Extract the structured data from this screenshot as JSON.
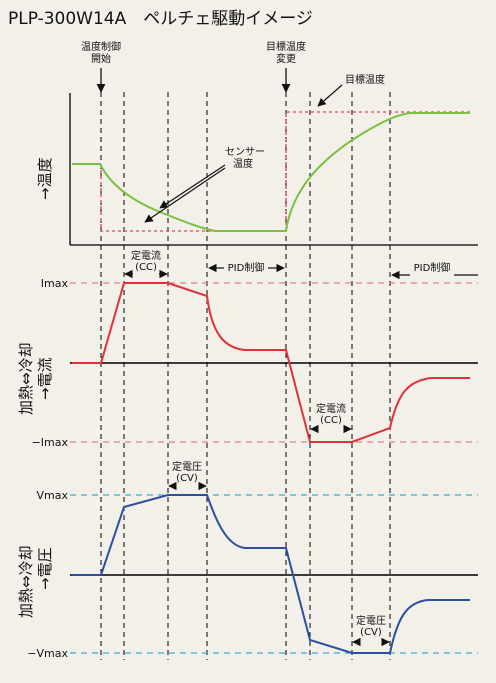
{
  "title": "PLP-300W14A　ペルチェ駆動イメージ",
  "colors": {
    "background": "#f2f0e8",
    "sensor_curve": "#7bc043",
    "target_line": "#e0607e",
    "current_curve": "#e0313c",
    "current_limit_line": "#e08090",
    "voltage_curve": "#2c4fa0",
    "voltage_limit_line": "#44aacc",
    "axis": "#000000"
  },
  "panel_temperature": {
    "ylabel": "→温度",
    "event_start_line1": "温度制御",
    "event_start_line2": "開始",
    "event_change_line1": "目標温度",
    "event_change_line2": "変更",
    "target_label": "目標温度",
    "sensor_label_line1": "センサー",
    "sensor_label_line2": "温度"
  },
  "panel_current": {
    "ylabel_vertical": "加熱⇔冷却",
    "ylabel_arrow": "→電流",
    "max_label": "Imax",
    "min_label": "−Imax",
    "cc_label_line1": "定電流",
    "cc_label_line2": "(CC)",
    "pid_label": "PID制御"
  },
  "panel_voltage": {
    "ylabel_vertical": "加熱⇔冷却",
    "ylabel_arrow": "→電圧",
    "max_label": "Vmax",
    "min_label": "−Vmax",
    "cv_label_line1": "定電圧",
    "cv_label_line2": "(CV)"
  }
}
